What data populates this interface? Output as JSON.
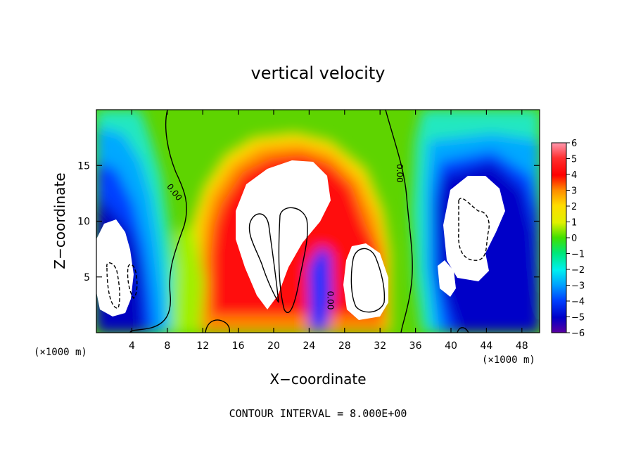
{
  "chart_data": {
    "type": "heatmap",
    "title": "vertical velocity",
    "xlabel": "X−coordinate",
    "ylabel": "Z−coordinate",
    "x_unit_left": "(×1000 m)",
    "x_unit_right": "(×1000 m)",
    "xlim": [
      0,
      50
    ],
    "ylim": [
      0,
      20
    ],
    "x_ticks": [
      4,
      8,
      12,
      16,
      20,
      24,
      28,
      32,
      36,
      40,
      44,
      48
    ],
    "x_tick_labels": [
      "4",
      "8",
      "12",
      "16",
      "20",
      "24",
      "28",
      "32",
      "36",
      "40",
      "44",
      "48"
    ],
    "y_ticks": [
      5,
      10,
      15
    ],
    "y_tick_labels": [
      "5",
      "10",
      "15"
    ],
    "colorbar": {
      "range": [
        -6,
        6
      ],
      "ticks": [
        6,
        5,
        4,
        3,
        2,
        1,
        0,
        -1,
        -2,
        -3,
        -4,
        -5,
        -6
      ],
      "tick_labels": [
        "6",
        "5",
        "4",
        "3",
        "2",
        "1",
        "0",
        "−1",
        "−2",
        "−3",
        "−4",
        "−5",
        "−6"
      ],
      "colors": [
        "#ff9ab0",
        "#ff5555",
        "#ff0000",
        "#ff8c00",
        "#ffc800",
        "#ffff00",
        "#b4f000",
        "#00e000",
        "#00e8a0",
        "#00f0f0",
        "#00a8ff",
        "#0050ff",
        "#0000d0",
        "#5a00a0"
      ]
    },
    "contour_labels": [
      {
        "text": "0.00",
        "x": 8.8,
        "z": 12.6,
        "angle": 52
      },
      {
        "text": "0.00",
        "x": 26.4,
        "z": 2.9,
        "angle": 90
      },
      {
        "text": "0.00",
        "x": 34.2,
        "z": 14.3,
        "angle": 90
      }
    ],
    "footer": "CONTOUR INTERVAL = 8.000E+00"
  }
}
